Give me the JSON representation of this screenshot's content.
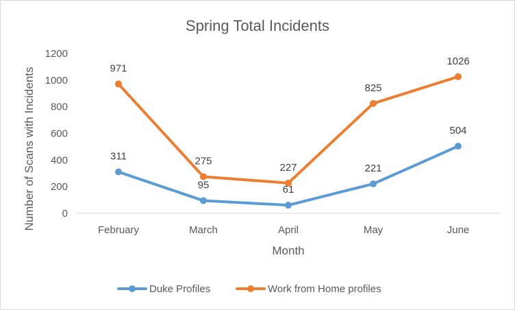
{
  "chart_data": {
    "type": "line",
    "title": "Spring Total Incidents",
    "xlabel": "Month",
    "ylabel": "Number of Scans with Incidents",
    "categories": [
      "February",
      "March",
      "April",
      "May",
      "June"
    ],
    "ylim": [
      0,
      1200
    ],
    "yticks": [
      0,
      200,
      400,
      600,
      800,
      1000,
      1200
    ],
    "grid": false,
    "legend_position": "bottom",
    "series": [
      {
        "name": "Duke Profiles",
        "values": [
          311,
          95,
          61,
          221,
          504
        ],
        "color": "#5B9BD5"
      },
      {
        "name": "Work from Home profiles",
        "values": [
          971,
          275,
          227,
          825,
          1026
        ],
        "color": "#ED7D31"
      }
    ]
  }
}
